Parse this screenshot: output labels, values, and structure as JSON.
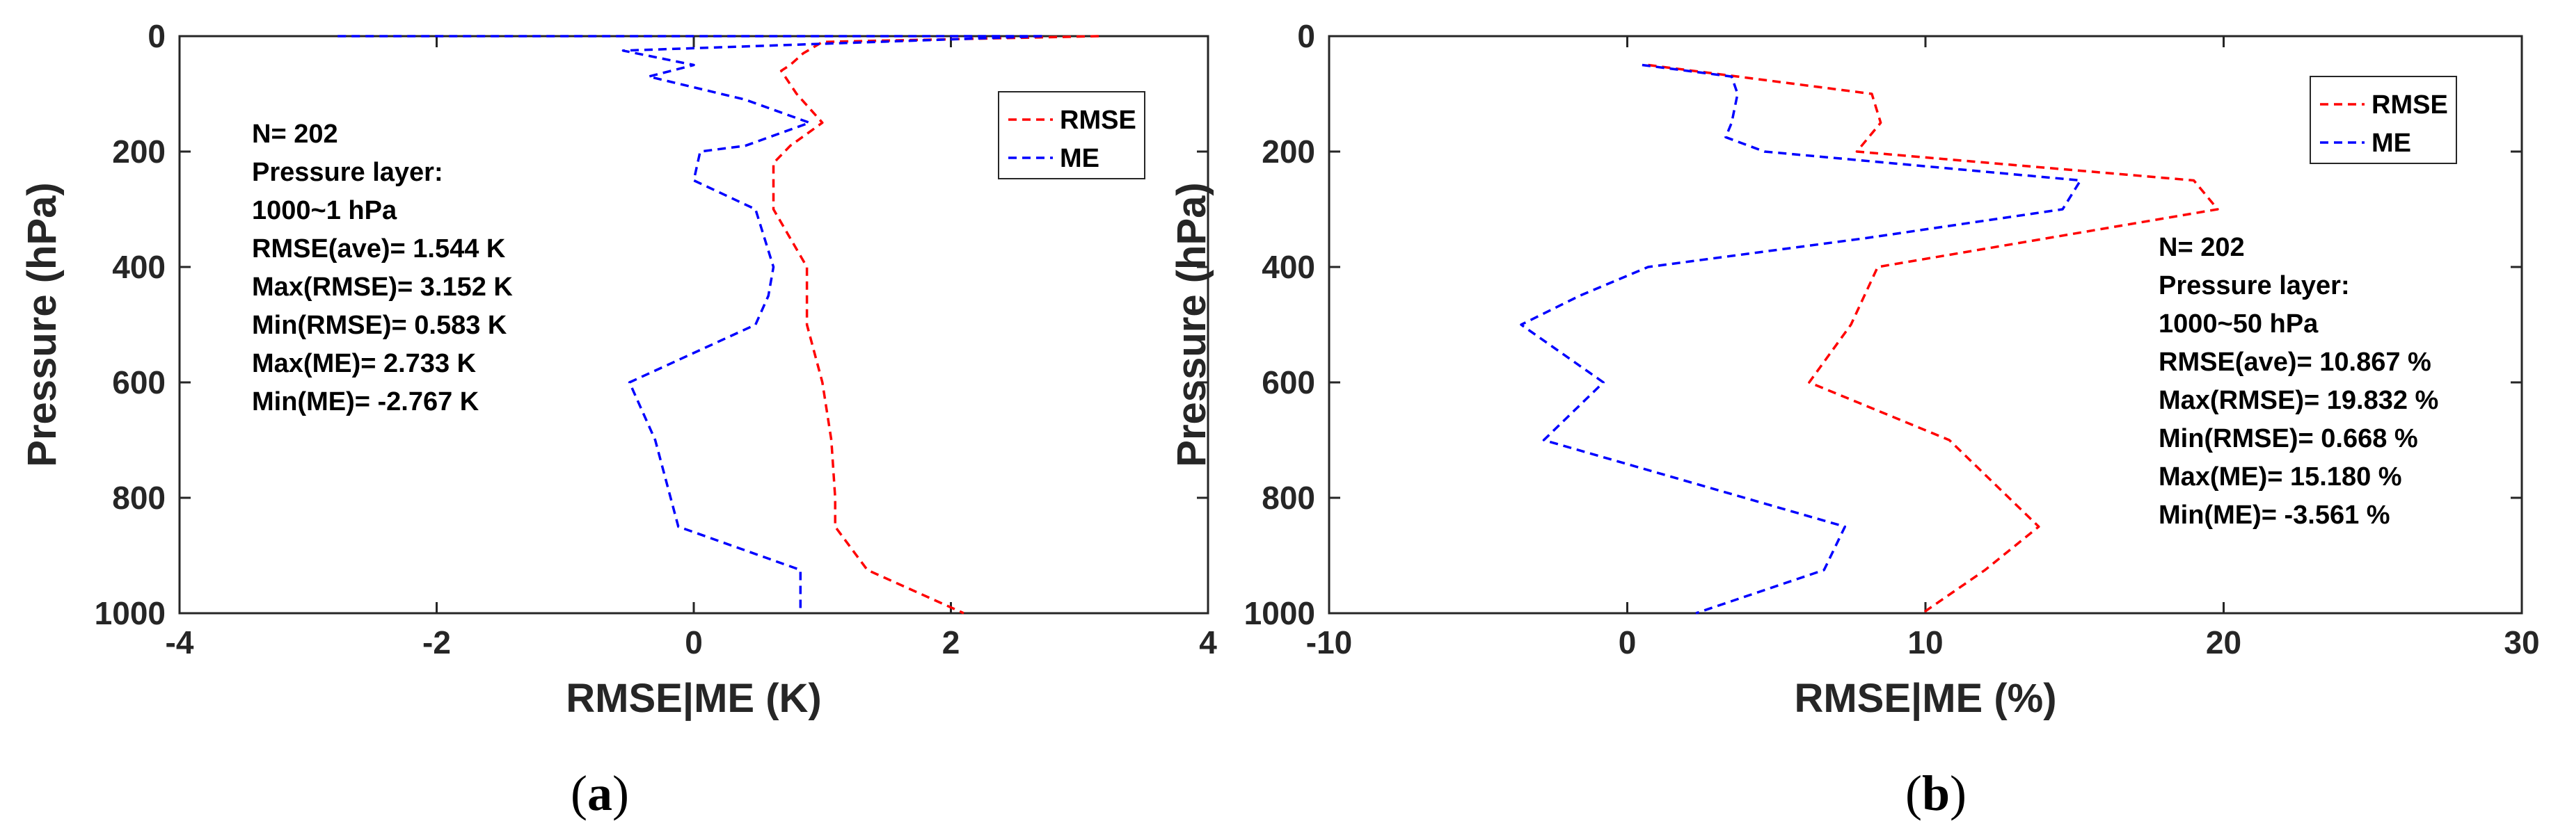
{
  "chart_data": [
    {
      "type": "line",
      "panel_label": "a",
      "xlabel": "RMSE|ME (K)",
      "ylabel": "Pressure (hPa)",
      "xlim": [
        -4,
        4
      ],
      "ylim": [
        1000,
        0
      ],
      "xticks": [
        -4,
        -2,
        0,
        2,
        4
      ],
      "yticks": [
        0,
        200,
        400,
        600,
        800,
        1000
      ],
      "y_inverted": true,
      "grid": false,
      "legend_position": "top-right",
      "series": [
        {
          "name": "RMSE",
          "color": "#ff0000",
          "line_style": "dashed",
          "points": [
            [
              3.15,
              0
            ],
            [
              1.0,
              10
            ],
            [
              0.85,
              30
            ],
            [
              0.75,
              50
            ],
            [
              0.68,
              60
            ],
            [
              0.8,
              100
            ],
            [
              1.0,
              150
            ],
            [
              0.75,
              190
            ],
            [
              0.62,
              220
            ],
            [
              0.62,
              300
            ],
            [
              0.88,
              400
            ],
            [
              0.88,
              500
            ],
            [
              1.0,
              600
            ],
            [
              1.07,
              700
            ],
            [
              1.1,
              800
            ],
            [
              1.1,
              850
            ],
            [
              1.35,
              925
            ],
            [
              2.1,
              1000
            ]
          ]
        },
        {
          "name": "ME",
          "color": "#0000ff",
          "line_style": "dashed",
          "points": [
            [
              -2.77,
              0
            ],
            [
              2.73,
              0
            ],
            [
              -0.55,
              25
            ],
            [
              0.0,
              50
            ],
            [
              -0.35,
              70
            ],
            [
              0.4,
              110
            ],
            [
              0.9,
              150
            ],
            [
              0.4,
              190
            ],
            [
              0.05,
              200
            ],
            [
              0.0,
              250
            ],
            [
              0.48,
              300
            ],
            [
              0.62,
              400
            ],
            [
              0.58,
              450
            ],
            [
              0.48,
              500
            ],
            [
              -0.5,
              600
            ],
            [
              -0.3,
              700
            ],
            [
              -0.12,
              850
            ],
            [
              0.83,
              925
            ],
            [
              0.83,
              1000
            ]
          ]
        }
      ],
      "annotations": [
        "N= 202",
        "Pressure layer:",
        "1000~1 hPa",
        "RMSE(ave)= 1.544 K",
        "Max(RMSE)= 3.152 K",
        "Min(RMSE)= 0.583 K",
        "Max(ME)= 2.733 K",
        "Min(ME)= -2.767 K"
      ]
    },
    {
      "type": "line",
      "panel_label": "b",
      "xlabel": "RMSE|ME (%)",
      "ylabel": "Pressure (hPa)",
      "xlim": [
        -10,
        30
      ],
      "ylim": [
        1000,
        0
      ],
      "xticks": [
        -10,
        0,
        10,
        20,
        30
      ],
      "yticks": [
        0,
        200,
        400,
        600,
        800,
        1000
      ],
      "y_inverted": true,
      "grid": false,
      "legend_position": "top-right",
      "series": [
        {
          "name": "RMSE",
          "color": "#ff0000",
          "line_style": "dashed",
          "points": [
            [
              0.7,
              50
            ],
            [
              8.2,
              100
            ],
            [
              8.5,
              150
            ],
            [
              7.7,
              200
            ],
            [
              19.0,
              250
            ],
            [
              19.8,
              300
            ],
            [
              8.4,
              400
            ],
            [
              7.5,
              500
            ],
            [
              6.1,
              600
            ],
            [
              10.8,
              700
            ],
            [
              13.8,
              850
            ],
            [
              12.0,
              925
            ],
            [
              9.9,
              1000
            ]
          ]
        },
        {
          "name": "ME",
          "color": "#0000ff",
          "line_style": "dashed",
          "points": [
            [
              0.5,
              50
            ],
            [
              3.5,
              70
            ],
            [
              3.7,
              100
            ],
            [
              3.5,
              150
            ],
            [
              3.3,
              175
            ],
            [
              4.6,
              200
            ],
            [
              15.2,
              250
            ],
            [
              14.6,
              300
            ],
            [
              8.0,
              350
            ],
            [
              0.7,
              400
            ],
            [
              -1.6,
              450
            ],
            [
              -3.56,
              500
            ],
            [
              -0.8,
              600
            ],
            [
              -2.8,
              700
            ],
            [
              7.3,
              850
            ],
            [
              6.6,
              925
            ],
            [
              2.3,
              1000
            ]
          ]
        }
      ],
      "annotations": [
        "N= 202",
        "Pressure layer:",
        "1000~50 hPa",
        "RMSE(ave)= 10.867 %",
        "Max(RMSE)= 19.832 %",
        "Min(RMSE)= 0.668 %",
        "Max(ME)= 15.180 %",
        "Min(ME)= -3.561 %"
      ]
    }
  ]
}
